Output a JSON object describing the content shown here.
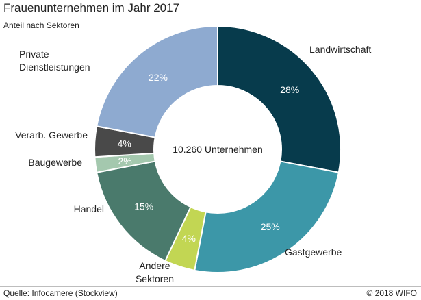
{
  "header": {
    "title": "Frauenunternehmen im Jahr 2017",
    "subtitle": "Anteil nach Sektoren"
  },
  "footer": {
    "source": "Quelle: Infocamere (Stockview)",
    "copyright": "© 2018 WIFO"
  },
  "chart_data": {
    "type": "pie",
    "donut": true,
    "center_label": "10.260 Unternehmen",
    "title": "Frauenunternehmen im Jahr 2017",
    "subtitle": "Anteil nach Sektoren",
    "slices": [
      {
        "key": "landwirtschaft",
        "label": "Landwirtschaft",
        "value": 28,
        "value_label": "28%",
        "color": "#073b4c",
        "text_color": "#ffffff"
      },
      {
        "key": "gastgewerbe",
        "label": "Gastgewerbe",
        "value": 25,
        "value_label": "25%",
        "color": "#3c97a8",
        "text_color": "#ffffff"
      },
      {
        "key": "andere-sektoren",
        "label": "Andere Sektoren",
        "label_lines": [
          "Andere",
          "Sektoren"
        ],
        "value": 4,
        "value_label": "4%",
        "color": "#c2d653",
        "text_color": "#ffffff"
      },
      {
        "key": "handel",
        "label": "Handel",
        "value": 15,
        "value_label": "15%",
        "color": "#4a7a6c",
        "text_color": "#ffffff"
      },
      {
        "key": "baugewerbe",
        "label": "Baugewerbe",
        "value": 2,
        "value_label": "2%",
        "color": "#a4c8ae",
        "text_color": "#ffffff"
      },
      {
        "key": "verarb-gewerbe",
        "label": "Verarb. Gewerbe",
        "value": 4,
        "value_label": "4%",
        "color": "#494949",
        "text_color": "#ffffff"
      },
      {
        "key": "private-dienstleistungen",
        "label": "Private Dienstleistungen",
        "label_lines": [
          "Private",
          "Dienstleistungen"
        ],
        "value": 22,
        "value_label": "22%",
        "color": "#8eaad0",
        "text_color": "#ffffff"
      }
    ]
  }
}
